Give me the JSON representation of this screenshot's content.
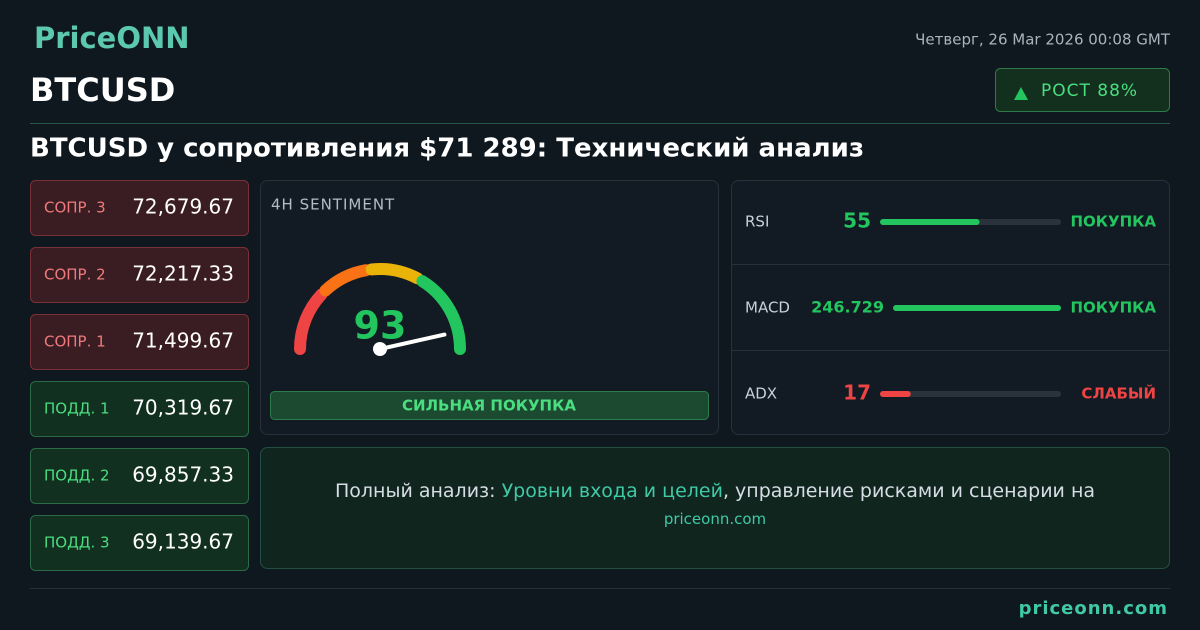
{
  "header": {
    "logo": "PriceONN",
    "datetime": "Четверг, 26 Мar 2026 00:08 GMT",
    "symbol": "BTCUSD",
    "trend": "РОСТ 88%",
    "headline": "BTCUSD у сопротивления $71 289: Технический анализ"
  },
  "levels": [
    {
      "label": "СОПР. 3",
      "value": "72,679.67",
      "color": "#f07a7b"
    },
    {
      "label": "СОПР. 2",
      "value": "72,217.33",
      "color": "#f07a7b"
    },
    {
      "label": "СОПР. 1",
      "value": "71,499.67",
      "color": "#f07a7b"
    },
    {
      "label": "ПОДД. 1",
      "value": "70,319.67",
      "color": "#4ade80"
    },
    {
      "label": "ПОДД. 2",
      "value": "69,857.33",
      "color": "#4ade80"
    },
    {
      "label": "ПОДД. 3",
      "value": "69,139.67",
      "color": "#4ade80"
    }
  ],
  "sentiment": {
    "title": "4H SENTIMENT",
    "value": 93,
    "verdict": "СИЛЬНАЯ ПОКУПКА"
  },
  "indicators": [
    {
      "name": "RSI",
      "value": 55,
      "signal": "ПОКУПКА",
      "color": "#22c55e"
    },
    {
      "name": "MACD",
      "value": 246.729,
      "signal": "ПОКУПКА",
      "color": "#22c55e"
    },
    {
      "name": "ADX",
      "value": 17,
      "signal": "СЛАБЫЙ",
      "color": "#ef4444"
    }
  ],
  "cta": {
    "prefix": "Полный анализ:",
    "link": "Уровни входа и целей",
    "suffix": ", управление рисками и сценарии на",
    "site": "priceonn.com"
  },
  "footer": "priceonn.com"
}
